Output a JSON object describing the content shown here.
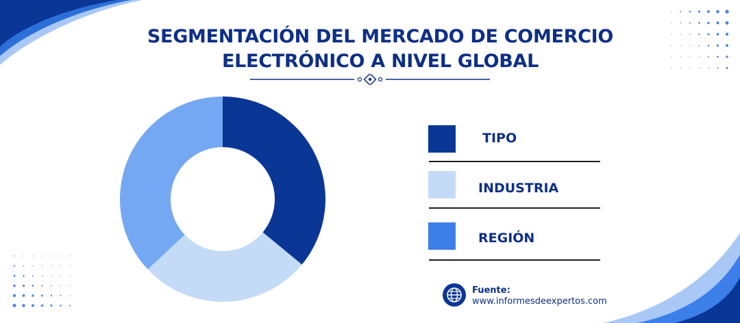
{
  "title": {
    "line1": "SEGMENTACIÓN DEL MERCADO DE COMERCIO",
    "line2": "ELECTRÓNICO A NIVEL GLOBAL"
  },
  "colors": {
    "primary": "#0a3696",
    "light": "#c3dbf6",
    "medium": "#75a8f2",
    "legend_region": "#3d7fe9",
    "text": "#0e2f86"
  },
  "chart_data": {
    "type": "pie",
    "donut": true,
    "categories": [
      "TIPO",
      "INDUSTRIA",
      "REGIÓN"
    ],
    "values": [
      36,
      27,
      37
    ],
    "colors": [
      "#0a3696",
      "#c3dbf6",
      "#75a8f2"
    ],
    "legend": [
      {
        "label": "TIPO",
        "color": "#0a3696"
      },
      {
        "label": "INDUSTRIA",
        "color": "#c3dbf6"
      },
      {
        "label": "REGIÓN",
        "color": "#3d7fe9"
      }
    ],
    "legend_position": "right"
  },
  "source": {
    "label": "Fuente:",
    "url": "www.informesdeexpertos.com",
    "icon": "globe-icon"
  }
}
